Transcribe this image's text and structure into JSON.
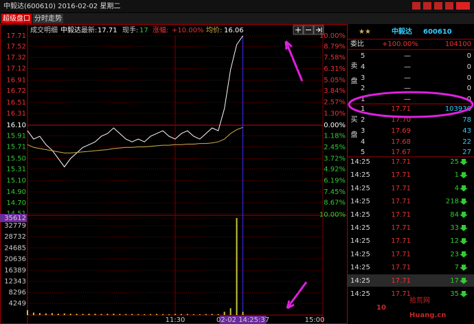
{
  "window": {
    "title": "中毅达(600610) 2016-02-02 星期二",
    "tabs": [
      "超级盘口",
      "分时走势"
    ]
  },
  "chart_header": {
    "tab": "成交明细",
    "name": "中毅达",
    "latest_label": "最新:",
    "latest": "17.71",
    "hand_label": "现手:",
    "hand": "17",
    "change_label": "涨幅:",
    "change": "+10.00%",
    "avg_label": "均价:",
    "avg": "16.06"
  },
  "chart_data": [
    {
      "type": "line",
      "x": [
        0,
        5,
        10,
        15,
        20,
        25,
        30,
        35,
        40,
        45,
        50,
        55,
        60,
        65,
        70,
        75,
        80,
        85,
        90,
        95,
        100,
        105,
        110,
        115,
        120,
        125,
        130,
        135,
        140,
        145,
        150,
        155,
        160,
        165,
        170,
        175
      ],
      "xlim": [
        0,
        240
      ],
      "ylim": [
        14.49,
        17.71
      ],
      "yticks": [
        17.71,
        17.52,
        17.32,
        17.12,
        16.91,
        16.72,
        16.51,
        16.31,
        {
          "value": 16.1,
          "label": "16.10"
        },
        15.91,
        15.71,
        {
          "value": 15.5,
          "label": "15.50"
        },
        15.31,
        {
          "value": 15.1,
          "label": "15.10"
        },
        {
          "value": 14.9,
          "label": "14.90"
        },
        {
          "value": 14.7,
          "label": "14.70"
        },
        14.51
      ],
      "y2lim": [
        -10,
        10
      ],
      "y2ticks": [
        {
          "value": 10,
          "label": "10.00%"
        },
        {
          "value": 8.79,
          "label": "8.79%"
        },
        {
          "value": 7.58,
          "label": "7.58%"
        },
        {
          "value": 6.31,
          "label": "6.31%"
        },
        {
          "value": 5.05,
          "label": "5.05%"
        },
        {
          "value": 3.84,
          "label": "3.84%"
        },
        {
          "value": 2.57,
          "label": "2.57%"
        },
        {
          "value": 1.3,
          "label": "1.30%"
        },
        {
          "value": 0,
          "label": "0.00%"
        },
        {
          "value": -1.18,
          "label": "1.18%"
        },
        {
          "value": -2.45,
          "label": "2.45%"
        },
        {
          "value": -3.72,
          "label": "3.72%"
        },
        {
          "value": -4.92,
          "label": "4.92%"
        },
        {
          "value": -6.19,
          "label": "6.19%"
        },
        {
          "value": -7.45,
          "label": "7.45%"
        },
        {
          "value": -8.67,
          "label": "8.67%"
        },
        {
          "value": -10,
          "label": "10.00%"
        }
      ],
      "series": [
        {
          "color": "#ffffff",
          "values": [
            16.0,
            15.85,
            15.9,
            15.75,
            15.65,
            15.5,
            15.35,
            15.5,
            15.6,
            15.7,
            15.75,
            15.8,
            15.9,
            15.95,
            16.05,
            15.95,
            15.85,
            15.8,
            15.85,
            15.8,
            15.9,
            15.95,
            16.0,
            15.9,
            15.85,
            15.95,
            16.0,
            15.9,
            15.85,
            15.95,
            16.05,
            16.0,
            16.4,
            17.1,
            17.55,
            17.71
          ]
        },
        {
          "color": "#d4b04a",
          "values": [
            15.75,
            15.7,
            15.68,
            15.66,
            15.64,
            15.62,
            15.6,
            15.6,
            15.61,
            15.62,
            15.63,
            15.64,
            15.65,
            15.66,
            15.68,
            15.69,
            15.7,
            15.7,
            15.71,
            15.71,
            15.72,
            15.73,
            15.74,
            15.74,
            15.75,
            15.75,
            15.76,
            15.76,
            15.77,
            15.77,
            15.78,
            15.8,
            15.85,
            15.95,
            16.02,
            16.06
          ]
        }
      ]
    },
    {
      "type": "bar",
      "x": [
        0,
        5,
        10,
        15,
        20,
        25,
        30,
        35,
        40,
        45,
        50,
        55,
        60,
        65,
        70,
        75,
        80,
        85,
        90,
        95,
        100,
        105,
        110,
        115,
        120,
        125,
        130,
        135,
        140,
        145,
        150,
        155,
        160,
        165,
        170,
        175
      ],
      "xlim": [
        0,
        240
      ],
      "xticks": [
        {
          "value": 120,
          "label": "11:30"
        },
        {
          "value": 175,
          "label": "02-02 14:25:37"
        },
        {
          "value": 240,
          "label": "15:00"
        }
      ],
      "ylim": [
        0,
        35612
      ],
      "yticks": [
        35612,
        32779,
        28732,
        24685,
        20636,
        16389,
        12343,
        8296,
        4249
      ],
      "color": "#c8c840",
      "values": [
        1800,
        900,
        700,
        600,
        700,
        500,
        600,
        500,
        450,
        400,
        500,
        450,
        400,
        450,
        500,
        400,
        350,
        400,
        350,
        300,
        350,
        400,
        350,
        300,
        400,
        350,
        350,
        300,
        300,
        350,
        400,
        350,
        1200,
        2500,
        35612,
        1200
      ]
    }
  ],
  "quote_panel": {
    "name": "中毅达",
    "code": "600610",
    "ratio_label": "委比",
    "ratio": "+100.00%",
    "ratio_diff": "104100",
    "sell_label": "卖盘",
    "buy_label": "买盘",
    "sell": [
      [
        "5",
        "—",
        "0"
      ],
      [
        "4",
        "—",
        "0"
      ],
      [
        "3",
        "—",
        "0"
      ],
      [
        "2",
        "—",
        "0"
      ],
      [
        "1",
        "—",
        "0"
      ]
    ],
    "buy": [
      [
        "1",
        "17.71",
        "103930"
      ],
      [
        "2",
        "17.70",
        "78"
      ],
      [
        "3",
        "17.69",
        "43"
      ],
      [
        "4",
        "17.68",
        "22"
      ],
      [
        "5",
        "17.67",
        "27"
      ]
    ],
    "trades": [
      [
        "14:25",
        "17.71",
        "25"
      ],
      [
        "14:25",
        "17.71",
        "1"
      ],
      [
        "14:25",
        "17.71",
        "4"
      ],
      [
        "14:25",
        "17.71",
        "218"
      ],
      [
        "14:25",
        "17.71",
        "84"
      ],
      [
        "14:25",
        "17.71",
        "33"
      ],
      [
        "14:25",
        "17.71",
        "12"
      ],
      [
        "14:25",
        "17.71",
        "23"
      ],
      [
        "14:25",
        "17.71",
        "7"
      ],
      [
        "14:25",
        "17.71",
        "17"
      ],
      [
        "14:25",
        "17.71",
        "35"
      ]
    ]
  },
  "watermark": {
    "number": "10",
    "name": "拾荒网",
    "site": "Huang.cn"
  }
}
